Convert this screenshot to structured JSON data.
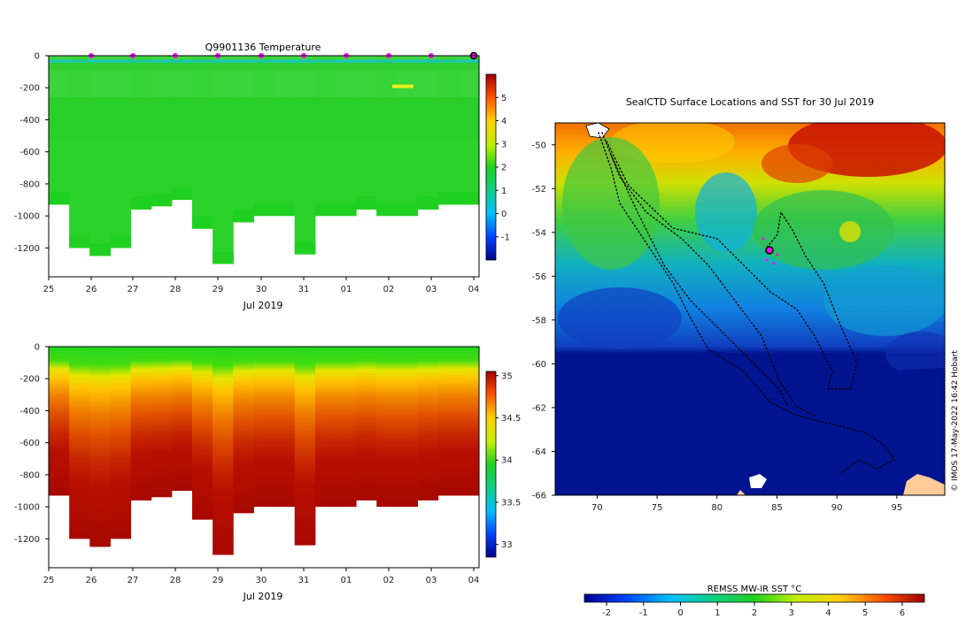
{
  "chart_data": [
    {
      "type": "heatmap",
      "title": "Q9901136  Temperature",
      "xlabel": "Jul 2019",
      "ylabel": "",
      "x_tick_labels": [
        "25",
        "26",
        "27",
        "28",
        "29",
        "30",
        "31",
        "01",
        "02",
        "03",
        "04"
      ],
      "y_ticks": [
        0,
        -200,
        -400,
        -600,
        -800,
        -1000,
        -1200
      ],
      "ylim": [
        -1380,
        0
      ],
      "colorbar_ticks": [
        -1,
        0,
        1,
        2,
        3,
        4,
        5
      ],
      "colorbar_range": [
        -2,
        6
      ],
      "grid": false,
      "profile_max_depth": [
        930,
        1200,
        1250,
        1200,
        960,
        940,
        900,
        1080,
        1300,
        1040,
        1000,
        1000,
        1240,
        1000,
        1000,
        960,
        1000,
        1000,
        960,
        930,
        930
      ],
      "profile_bottom_temp": [
        1.9,
        1.8,
        1.9,
        2.0,
        1.9,
        1.8,
        1.9,
        2.0,
        1.9,
        1.8,
        1.9,
        2.0,
        1.9,
        1.8,
        1.9,
        2.0,
        1.9,
        1.8,
        1.9,
        2.0,
        1.9
      ]
    },
    {
      "type": "heatmap",
      "title": "",
      "xlabel": "Jul 2019",
      "ylabel": "",
      "x_tick_labels": [
        "25",
        "26",
        "27",
        "28",
        "29",
        "30",
        "31",
        "01",
        "02",
        "03",
        "04"
      ],
      "y_ticks": [
        0,
        -200,
        -400,
        -600,
        -800,
        -1000,
        -1200
      ],
      "ylim": [
        -1380,
        0
      ],
      "colorbar_ticks": [
        33,
        33.5,
        34,
        34.5,
        35
      ],
      "colorbar_range": [
        32.85,
        35.05
      ],
      "grid": false,
      "profile_max_depth": [
        930,
        1200,
        1250,
        1200,
        960,
        940,
        900,
        1080,
        1300,
        1040,
        1000,
        1000,
        1240,
        1000,
        1000,
        960,
        1000,
        1000,
        960,
        930,
        930
      ]
    },
    {
      "type": "heatmap",
      "title": "SealCTD Surface Locations and SST for 30 Jul 2019",
      "xlabel": "",
      "ylabel": "",
      "x_tick_labels": [
        "70",
        "75",
        "80",
        "85",
        "90",
        "95"
      ],
      "y_tick_labels": [
        "-50",
        "-52",
        "-54",
        "-56",
        "-58",
        "-60",
        "-62",
        "-64",
        "-66"
      ],
      "xlim": [
        66.5,
        99
      ],
      "ylim": [
        -66,
        -49
      ],
      "colorbar_label": "REMSS MW-IR SST °C",
      "colorbar_ticks": [
        -2,
        -1,
        0,
        1,
        2,
        3,
        4,
        5,
        6
      ],
      "colorbar_range": [
        -2.6,
        6.6
      ],
      "credit": "© IMOS 17-May-2022 16:42 Hobart"
    }
  ],
  "colors": {
    "magenta": "#ff00ff",
    "land": "#ffcc99",
    "deep_ocean": "#001490"
  }
}
